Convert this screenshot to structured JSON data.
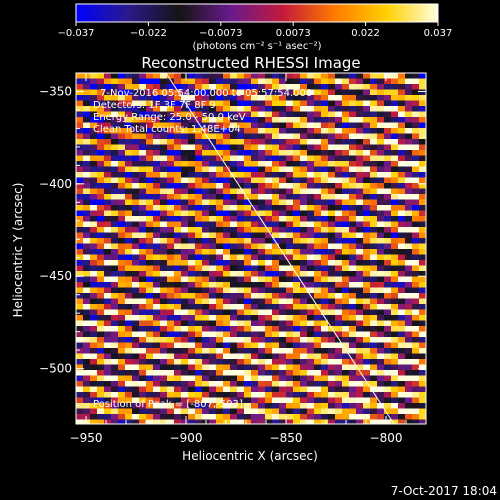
{
  "colorbar": {
    "ticks": [
      "-0.037",
      "-0.022",
      "-0.0073",
      "0.0073",
      "0.022",
      "0.037"
    ],
    "unit_label": "(photons cm⁻² s⁻¹ asec⁻²)",
    "colormap": [
      "#0000ff",
      "#2a1a8c",
      "#141414",
      "#6a1a8c",
      "#c21a3a",
      "#ff7a00",
      "#ffd000",
      "#ffffe0"
    ]
  },
  "header": {
    "title": "Reconstructed RHESSI Image",
    "time_line": "7-Nov-2016 05:54:00.000 to 05:57:54.000",
    "detectors_line": "Detectors: 1F 3F 7F 8F 9",
    "energy_line": "Energy Range: 25.0 - 50.0 keV",
    "clean_line": "Clean    Total counts: 1.48E+04"
  },
  "peak_label": "Position of Peak = [-807,-503]",
  "footer": {
    "timestamp": "7-Oct-2017 18:04"
  },
  "chart_data": {
    "type": "heatmap",
    "title": "Reconstructed RHESSI Image",
    "xlabel": "Heliocentric X (arcsec)",
    "ylabel": "Heliocentric Y (arcsec)",
    "xlim": [
      -955,
      -780
    ],
    "ylim": [
      -530,
      -340
    ],
    "x_ticks": [
      -950,
      -900,
      -850,
      -800
    ],
    "y_ticks": [
      -500,
      -450,
      -400,
      -350
    ],
    "x_tick_labels": [
      "−950",
      "−900",
      "−850",
      "−800"
    ],
    "y_tick_labels": [
      "−500",
      "−450",
      "−400",
      "−350"
    ],
    "value_range": [
      -0.037,
      0.037
    ],
    "peak_position": [
      -807,
      -503
    ],
    "limb_line": [
      [
        -910,
        -340
      ],
      [
        -796,
        -530
      ]
    ],
    "grid": false
  }
}
